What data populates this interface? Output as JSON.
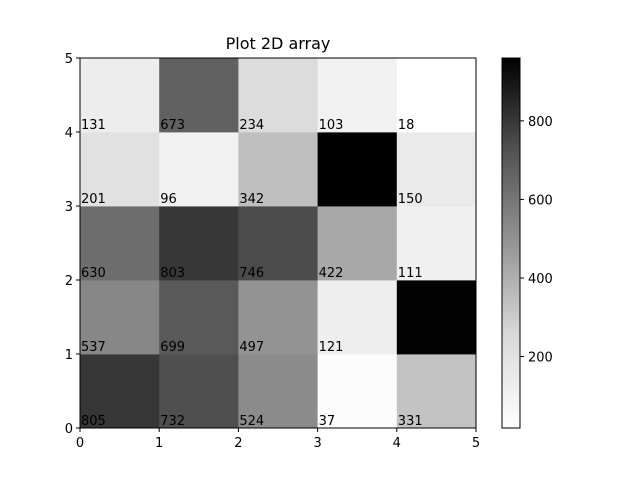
{
  "chart_data": {
    "type": "heatmap",
    "title": "Plot 2D array",
    "colormap": "Greys",
    "xlim": [
      0,
      5
    ],
    "ylim": [
      0,
      5
    ],
    "x_ticks": [
      "0",
      "1",
      "2",
      "3",
      "4",
      "5"
    ],
    "y_ticks": [
      "0",
      "1",
      "2",
      "3",
      "4",
      "5"
    ],
    "rows": [
      [
        805,
        732,
        524,
        37,
        331
      ],
      [
        537,
        699,
        497,
        121,
        950
      ],
      [
        630,
        803,
        746,
        422,
        111
      ],
      [
        201,
        96,
        342,
        960,
        150
      ],
      [
        131,
        673,
        234,
        103,
        18
      ]
    ],
    "cell_labels": [
      [
        "805",
        "732",
        "524",
        "37",
        "331"
      ],
      [
        "537",
        "699",
        "497",
        "121",
        ""
      ],
      [
        "630",
        "803",
        "746",
        "422",
        "111"
      ],
      [
        "201",
        "96",
        "342",
        "",
        "150"
      ],
      [
        "131",
        "673",
        "234",
        "103",
        "18"
      ]
    ],
    "colorbar": {
      "min": 18,
      "max": 960,
      "ticks": [
        "200",
        "400",
        "600",
        "800"
      ]
    }
  }
}
